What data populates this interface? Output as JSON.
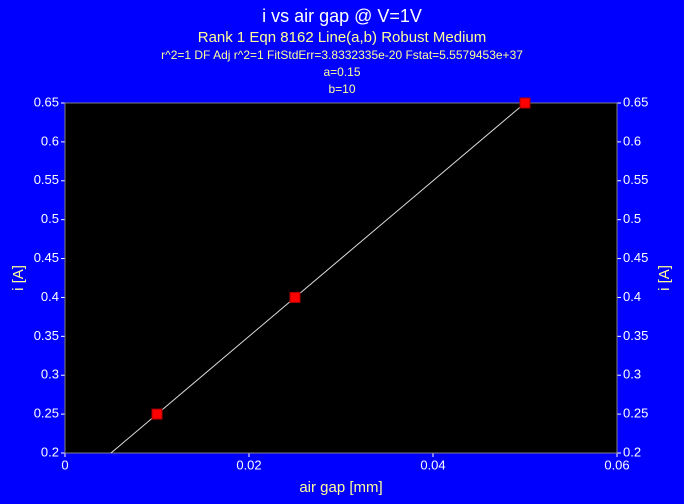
{
  "chart_data": {
    "type": "scatter",
    "title": "i vs air gap @ V=1V",
    "subtitle": [
      "Rank 1  Eqn 8162  Line(a,b) Robust Medium",
      "r^2=1  DF Adj r^2=1  FitStdErr=3.8332335e-20  Fstat=5.5579453e+37",
      "a=0.15",
      "b=10"
    ],
    "xlabel": "air gap [mm]",
    "ylabel": "i [A]",
    "x": [
      0.01,
      0.025,
      0.05
    ],
    "values": [
      0.25,
      0.4,
      0.65
    ],
    "color": "#ff0000",
    "fit": {
      "x": [
        0.005,
        0.05
      ],
      "values": [
        0.2,
        0.65
      ],
      "color": "#e0e0e0"
    },
    "xlim": [
      0,
      0.06
    ],
    "xticks": [
      0,
      0.02,
      0.04,
      0.06
    ],
    "ylim": [
      0.2,
      0.65
    ],
    "yticks": [
      0.2,
      0.25,
      0.3,
      0.35,
      0.4,
      0.45,
      0.5,
      0.55,
      0.6,
      0.65
    ],
    "y2lim": [
      0.2,
      0.65
    ],
    "y2ticks": [
      0.2,
      0.25,
      0.3,
      0.35,
      0.4,
      0.45,
      0.5,
      0.55,
      0.6,
      0.65
    ]
  }
}
